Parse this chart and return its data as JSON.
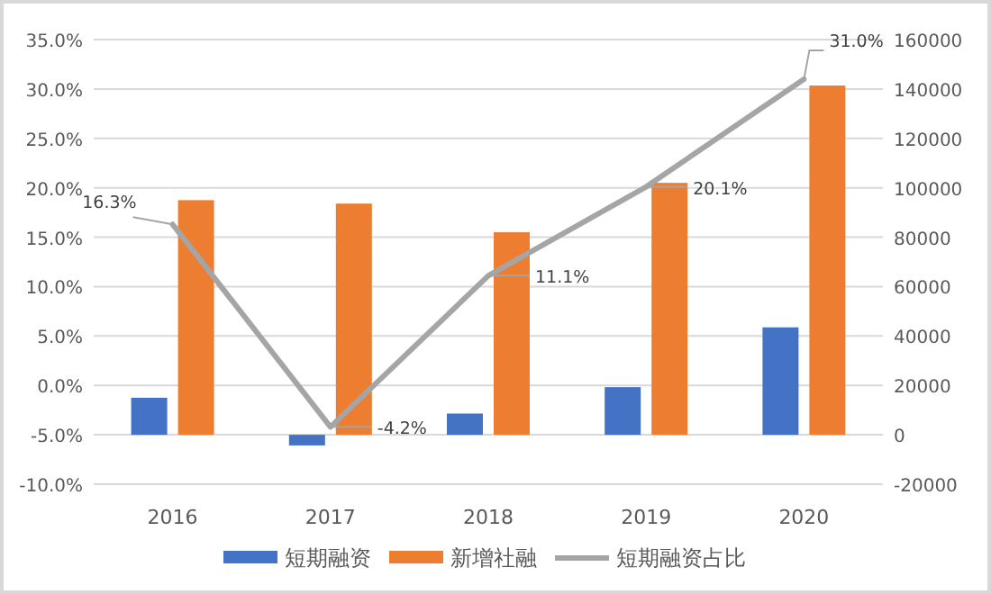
{
  "chart_data": {
    "type": "bar",
    "categories": [
      "2016",
      "2017",
      "2018",
      "2019",
      "2020"
    ],
    "series": [
      {
        "name": "短期融资",
        "color": "#4472c4",
        "axis": "y2",
        "values": [
          15000,
          -4300,
          8600,
          19300,
          43500
        ]
      },
      {
        "name": "新增社融",
        "color": "#ed7d31",
        "axis": "y2",
        "values": [
          95000,
          93600,
          82000,
          102000,
          141400
        ]
      },
      {
        "name": "短期融资占比",
        "type": "line",
        "color": "#a5a5a5",
        "axis": "y",
        "marker": "none",
        "values": [
          16.3,
          -4.2,
          11.1,
          20.1,
          31.0
        ],
        "value_labels": [
          "16.3%",
          "-4.2%",
          "11.1%",
          "20.1%",
          "31.0%"
        ]
      }
    ],
    "ylim": [
      -10,
      35
    ],
    "yticks": [
      {
        "value": -10,
        "label": "-10.0%"
      },
      {
        "value": -5,
        "label": "-5.0%"
      },
      {
        "value": 0,
        "label": "0.0%"
      },
      {
        "value": 5,
        "label": "5.0%"
      },
      {
        "value": 10,
        "label": "10.0%"
      },
      {
        "value": 15,
        "label": "15.0%"
      },
      {
        "value": 20,
        "label": "20.0%"
      },
      {
        "value": 25,
        "label": "25.0%"
      },
      {
        "value": 30,
        "label": "30.0%"
      },
      {
        "value": 35,
        "label": "35.0%"
      }
    ],
    "y2lim": [
      -20000,
      160000
    ],
    "y2ticks": [
      -20000,
      0,
      20000,
      40000,
      60000,
      80000,
      100000,
      120000,
      140000,
      160000
    ],
    "grid": "y",
    "legend": "bottom"
  }
}
